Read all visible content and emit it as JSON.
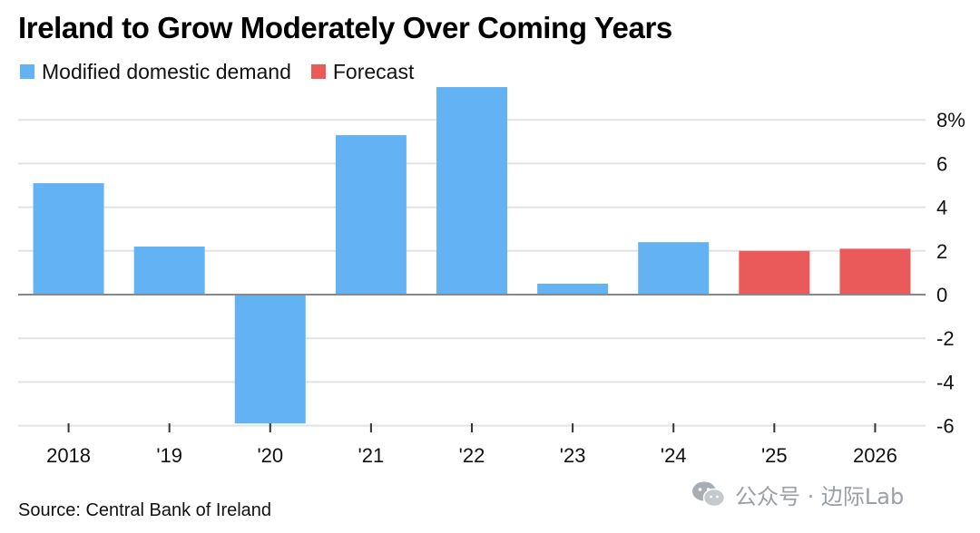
{
  "title": "Ireland to Grow Moderately Over Coming Years",
  "source": "Source: Central Bank of Ireland",
  "watermark": "公众号 · 边际Lab",
  "colors": {
    "actual": "#63b3f4",
    "forecast": "#eb5a5a",
    "grid": "#e2e2e2",
    "zero": "#888888"
  },
  "chart_data": {
    "type": "bar",
    "title": "Ireland to Grow Moderately Over Coming Years",
    "xlabel": "",
    "ylabel": "",
    "categories": [
      "2018",
      "'19",
      "'20",
      "'21",
      "'22",
      "'23",
      "'24",
      "'25",
      "2026"
    ],
    "series": [
      {
        "name": "Modified domestic demand",
        "values": [
          5.1,
          2.2,
          -5.9,
          7.3,
          9.5,
          0.5,
          2.4,
          null,
          null
        ]
      },
      {
        "name": "Forecast",
        "values": [
          null,
          null,
          null,
          null,
          null,
          null,
          null,
          2.0,
          2.1
        ]
      }
    ],
    "ylim": [
      -6,
      10
    ],
    "yticks": [
      -6,
      -4,
      -2,
      0,
      2,
      4,
      6,
      8
    ],
    "ytick_labels": [
      "-6",
      "-4",
      "-2",
      "0",
      "2",
      "4",
      "6",
      "8%"
    ],
    "grid": true,
    "legend": "top-left"
  }
}
